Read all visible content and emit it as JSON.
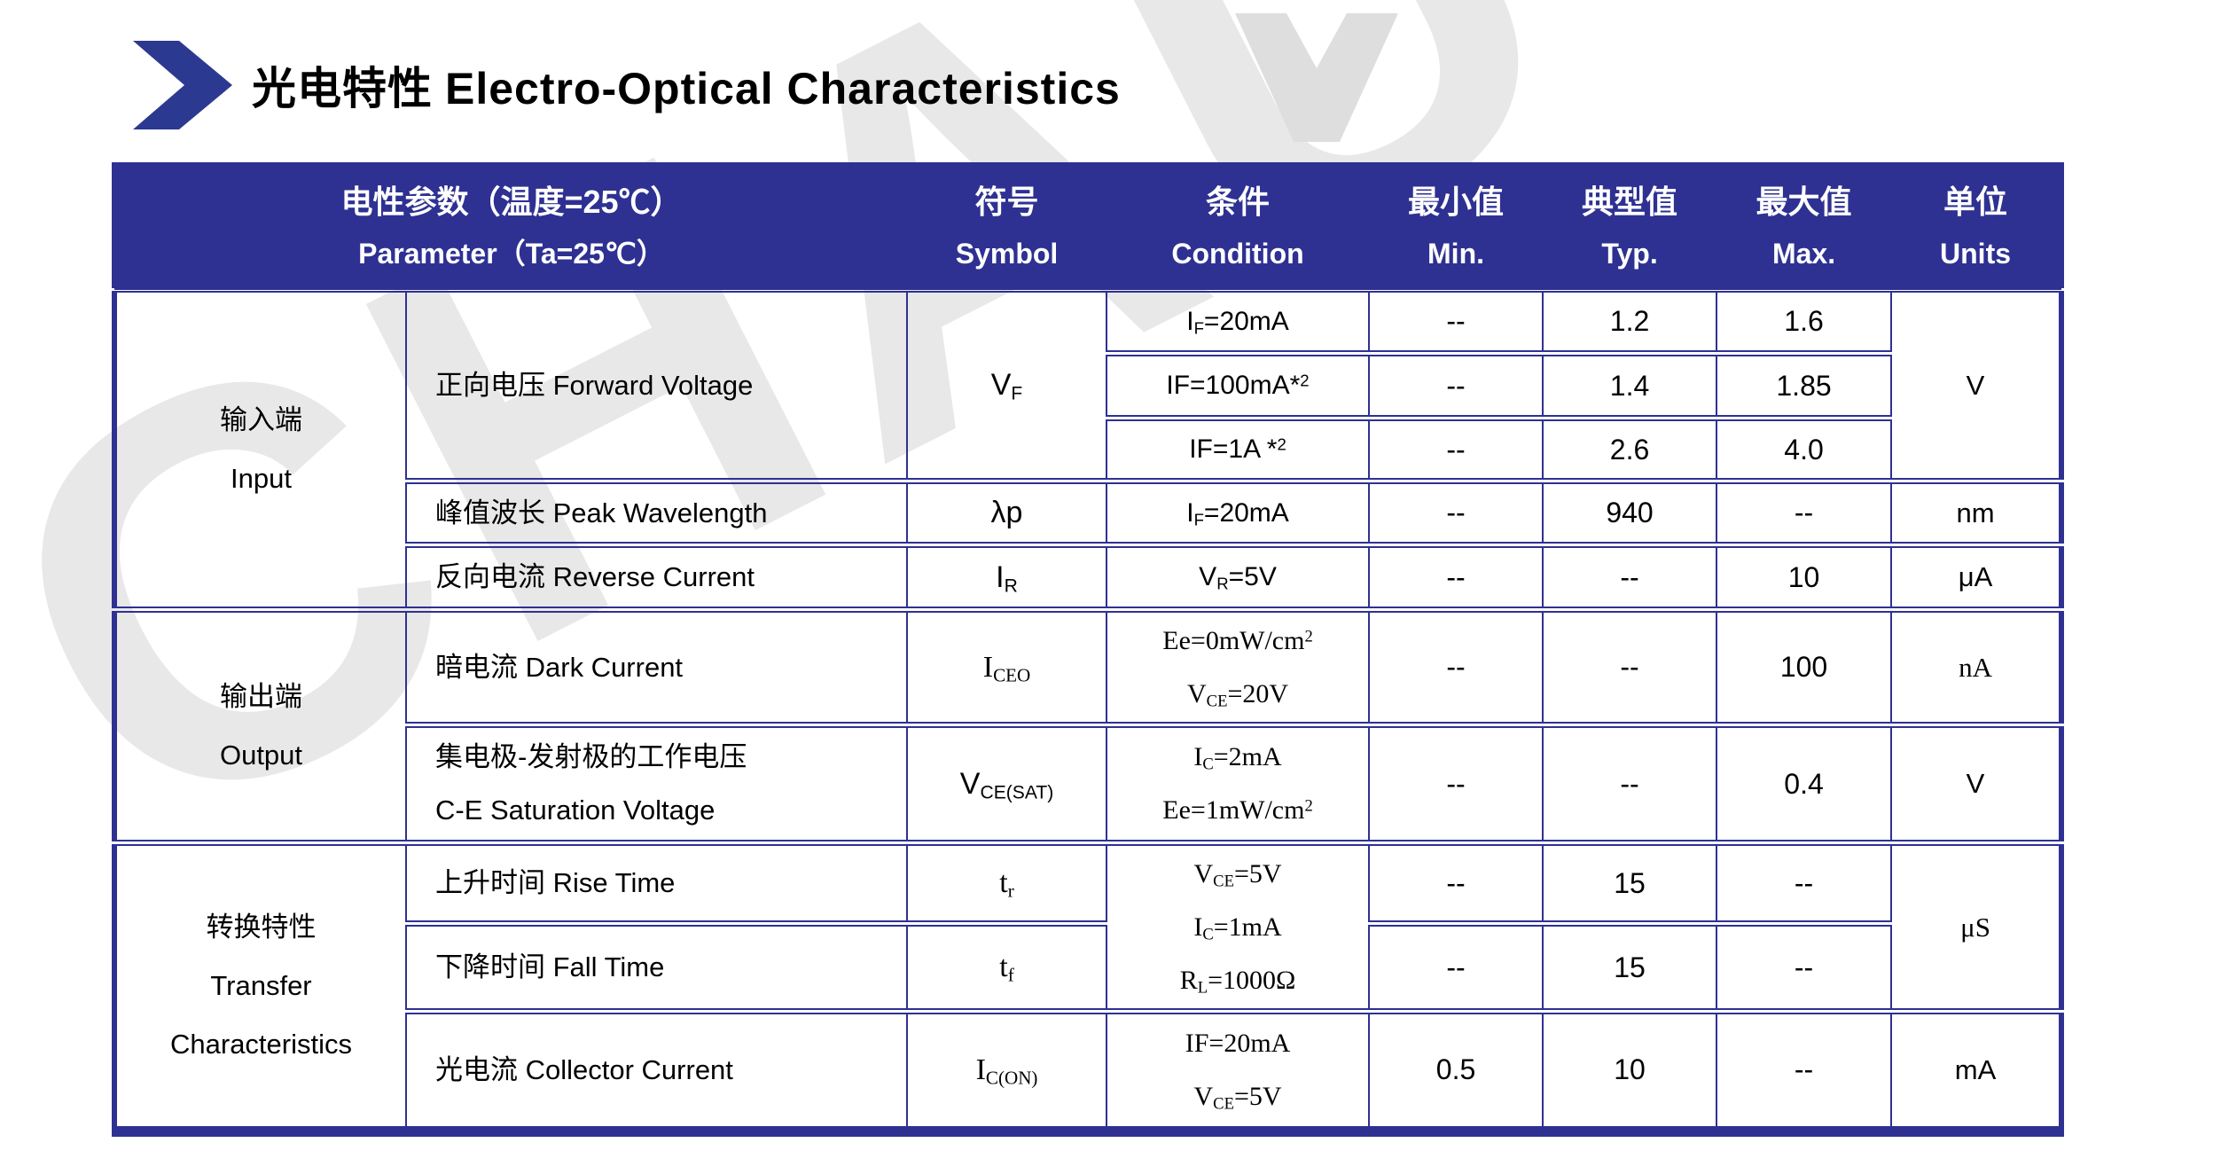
{
  "title": {
    "zh": "光电特性",
    "en": "Electro-Optical Characteristics"
  },
  "watermark": {
    "text": "CHAU"
  },
  "colors": {
    "header_bg": "#2e3192",
    "border": "#2e3192",
    "chevron_blue": "#2b3990",
    "watermark_grey": "#e8e8e8"
  },
  "table": {
    "header": {
      "parameter_zh": "电性参数（温度=25℃）",
      "parameter_en": "Parameter（Ta=25℃）",
      "symbol_zh": "符号",
      "symbol_en": "Symbol",
      "condition_zh": "条件",
      "condition_en": "Condition",
      "min_zh": "最小值",
      "min_en": "Min.",
      "typ_zh": "典型值",
      "typ_en": "Typ.",
      "max_zh": "最大值",
      "max_en": "Max.",
      "units_zh": "单位",
      "units_en": "Units"
    },
    "groups": {
      "input": {
        "zh": "输入端",
        "en": "Input"
      },
      "output": {
        "zh": "输出端",
        "en": "Output"
      },
      "transfer": {
        "zh": "转换特性",
        "en": "Transfer",
        "en2": "Characteristics"
      }
    },
    "rows": {
      "forward_voltage": {
        "param": "正向电压 Forward Voltage",
        "symbol_html": "V<sub>F</sub>",
        "units": "V",
        "sub": [
          {
            "condition_html": "I<sub>F</sub>=20mA",
            "min": "--",
            "typ": "1.2",
            "max": "1.6"
          },
          {
            "condition_html": "IF=100mA*<sup>2</sup>",
            "min": "--",
            "typ": "1.4",
            "max": "1.85"
          },
          {
            "condition_html": "IF=1A *<sup>2</sup>",
            "min": "--",
            "typ": "2.6",
            "max": "4.0"
          }
        ]
      },
      "peak_wavelength": {
        "param": "峰值波长 Peak Wavelength",
        "symbol_html": "λp",
        "condition_html": "I<sub>F</sub>=20mA",
        "min": "--",
        "typ": "940",
        "max": "--",
        "units": "nm"
      },
      "reverse_current": {
        "param": "反向电流 Reverse Current",
        "symbol_html": "I<sub>R</sub>",
        "condition_html": "V<sub>R</sub>=5V",
        "min": "--",
        "typ": "--",
        "max": "10",
        "units": "μA"
      },
      "dark_current": {
        "param": "暗电流 Dark Current",
        "symbol_html": "I<sub>CEO</sub>",
        "condition_html": "Ee=0mW/cm<sup>2</sup><br>V<sub>CE</sub>=20V",
        "min": "--",
        "typ": "--",
        "max": "100",
        "units": "nA"
      },
      "ce_saturation_voltage": {
        "param_zh": "集电极-发射极的工作电压",
        "param_en": "C-E Saturation Voltage",
        "symbol_html": "V<sub>CE(SAT)</sub>",
        "condition_html": "I<sub>C</sub>=2mA<br>Ee=1mW/cm<sup>2</sup>",
        "min": "--",
        "typ": "--",
        "max": "0.4",
        "units": "V"
      },
      "rise_time": {
        "param": "上升时间 Rise Time",
        "symbol_html": "t<sub>r</sub>",
        "min": "--",
        "typ": "15",
        "max": "--"
      },
      "fall_time": {
        "param": "下降时间 Fall Time",
        "symbol_html": "t<sub>f</sub>",
        "min": "--",
        "typ": "15",
        "max": "--"
      },
      "transfer_shared": {
        "condition_html": "V<sub>CE</sub>=5V<br>I<sub>C</sub>=1mA<br>R<sub>L</sub>=1000Ω",
        "units": "μS"
      },
      "collector_current": {
        "param": "光电流 Collector Current",
        "symbol_html": "I<sub>C(ON)</sub>",
        "condition_html": "IF=20mA<br>V<sub>CE</sub>=5V",
        "min": "0.5",
        "typ": "10",
        "max": "--",
        "units": "mA"
      }
    }
  }
}
